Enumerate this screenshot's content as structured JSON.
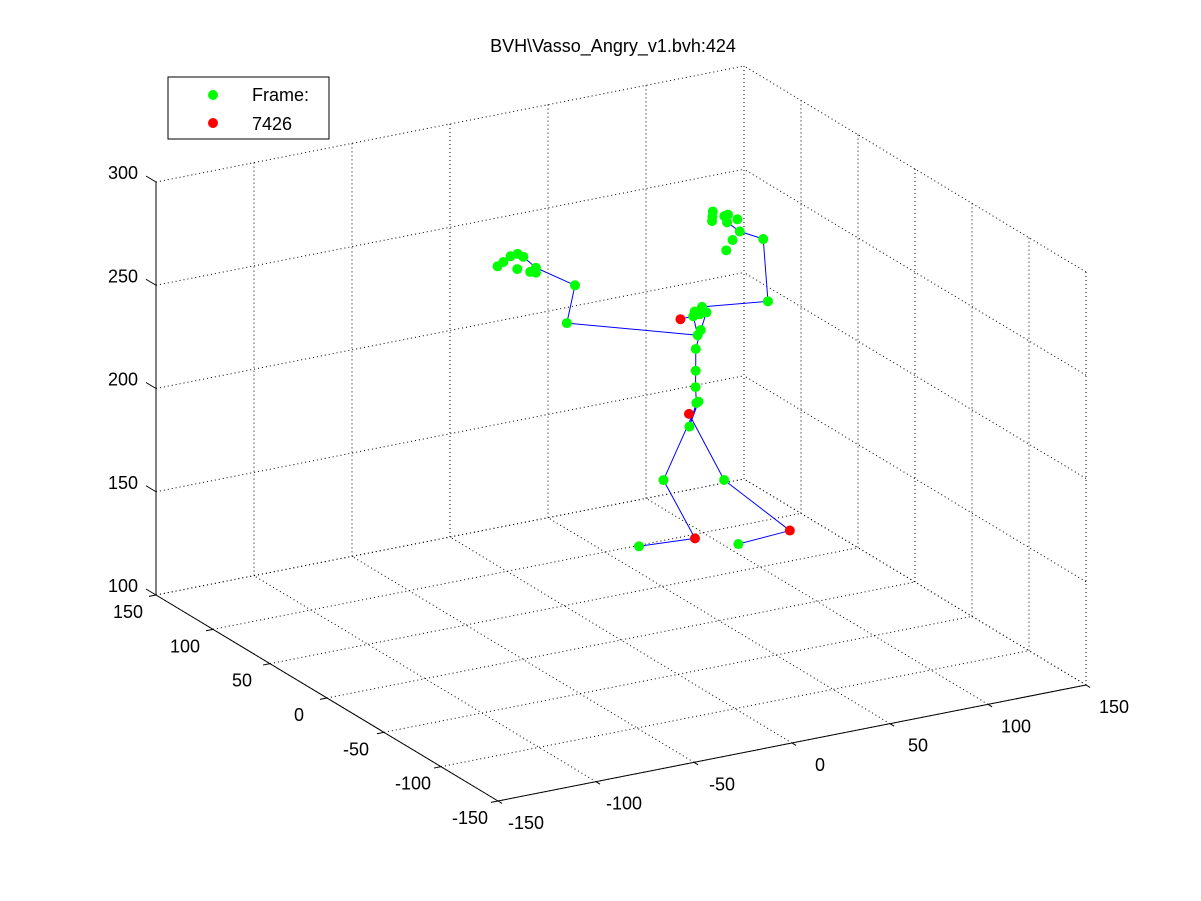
{
  "chart_data": {
    "type": "scatter",
    "title": "BVH\\Vasso_Angry_v1.bvh:424",
    "xlabel": "",
    "ylabel": "",
    "zlabel": "",
    "xlim": [
      -150,
      150
    ],
    "ylim": [
      -150,
      150
    ],
    "zlim": [
      100,
      300
    ],
    "x_ticks": [
      "-150",
      "-100",
      "-50",
      "0",
      "50",
      "100",
      "150"
    ],
    "y_ticks": [
      "-150",
      "-100",
      "-50",
      "0",
      "50",
      "100",
      "150"
    ],
    "z_ticks": [
      "100",
      "150",
      "200",
      "250",
      "300"
    ],
    "grid": true,
    "box": "open",
    "view": "3d",
    "legend": {
      "placement": "top-left",
      "entries": [
        {
          "label": "Frame:",
          "color": "#00ff00",
          "marker": "circle"
        },
        {
          "label": "7426",
          "color": "#ff0000",
          "marker": "circle"
        }
      ]
    },
    "colors": {
      "joints": "#00ff00",
      "end_effectors": "#ff0000",
      "bones": "#0000ff",
      "axes": "#000000",
      "grid": "#000000"
    },
    "series": [
      {
        "name": "Frame:",
        "points": [
          [
            44.3,
            5.1,
            251.3
          ],
          [
            38.4,
            1.4,
            251.4
          ],
          [
            34.2,
            -4.6,
            251.9
          ],
          [
            36.0,
            -7.2,
            253.4
          ],
          [
            41.5,
            -3.6,
            252.1
          ],
          [
            30.0,
            -15.7,
            247.2
          ],
          [
            40.0,
            -1.2,
            243.0
          ],
          [
            39.2,
            1.8,
            233.0
          ],
          [
            38.7,
            1.0,
            222.8
          ],
          [
            38.5,
            0.8,
            215.0
          ],
          [
            37.0,
            -2.5,
            208.7
          ],
          [
            41.3,
            3.1,
            206.7
          ],
          [
            34.9,
            0.0,
            196.8
          ],
          [
            22.3,
            1.1,
            172.9
          ],
          [
            53.2,
            1.0,
            167.2
          ],
          [
            16.5,
            12.6,
            138.1
          ],
          [
            69.7,
            16.9,
            127.8
          ],
          [
            -23.1,
            7.8,
            255.2
          ],
          [
            -32.6,
            -15.7,
            283.1
          ],
          [
            -45.9,
            -4.3,
            287.9
          ],
          [
            -47.5,
            -2.0,
            287.8
          ],
          [
            -45.8,
            -4.1,
            290.2
          ],
          [
            -47.2,
            4.5,
            292.9
          ],
          [
            -55.4,
            7.9,
            290.8
          ],
          [
            -61.7,
            2.2,
            291.8
          ],
          [
            -53.8,
            -1.5,
            290.2
          ],
          [
            -51.3,
            8.6,
            292.6
          ],
          [
            -46.6,
            10.6,
            292.2
          ],
          [
            71.9,
            -5.3,
            252.3
          ],
          [
            88.1,
            26.7,
            268.8
          ],
          [
            75.1,
            36.1,
            276.2
          ],
          [
            77.5,
            39.4,
            278.4
          ],
          [
            70.2,
            40.5,
            278.4
          ],
          [
            67.1,
            35.5,
            278.5
          ],
          [
            79.5,
            32.5,
            272.2
          ],
          [
            76.4,
            40.7,
            277.4
          ],
          [
            81.0,
            37.2,
            276.2
          ],
          [
            72.3,
            43.8,
            279.4
          ],
          [
            72.9,
            27.5,
            270.9
          ],
          [
            67.6,
            23.9,
            268.1
          ]
        ]
      },
      {
        "name": "7426",
        "points": [
          [
            21.6,
            -15.0,
            256.3
          ],
          [
            35.5,
            1.4,
            202.4
          ],
          [
            37.7,
            -0.1,
            142.2
          ],
          [
            84.0,
            -3.7,
            138.5
          ]
        ]
      }
    ],
    "bones": [
      [
        34.9,
        0.0,
        196.8,
        37.0,
        -2.5,
        208.7
      ],
      [
        37.0,
        -2.5,
        208.7,
        38.5,
        0.8,
        215.0
      ],
      [
        38.5,
        0.8,
        215.0,
        38.7,
        1.0,
        222.8
      ],
      [
        38.7,
        1.0,
        222.8,
        39.2,
        1.8,
        233.0
      ],
      [
        39.2,
        1.8,
        233.0,
        40.0,
        -1.2,
        243.0
      ],
      [
        40.0,
        -1.2,
        243.0,
        41.5,
        -3.6,
        252.1
      ],
      [
        41.5,
        -3.6,
        252.1,
        36.0,
        -7.2,
        253.4
      ],
      [
        36.0,
        -7.2,
        253.4,
        34.2,
        -4.6,
        251.9
      ],
      [
        34.2,
        -4.6,
        251.9,
        38.4,
        1.4,
        251.4
      ],
      [
        38.4,
        1.4,
        251.4,
        44.3,
        5.1,
        251.3
      ],
      [
        36.0,
        -7.2,
        253.4,
        21.6,
        -15.0,
        256.3
      ],
      [
        34.2,
        -4.6,
        251.9,
        30.0,
        -15.7,
        247.2
      ],
      [
        30.0,
        -15.7,
        247.2,
        -23.1,
        7.8,
        255.2
      ],
      [
        -23.1,
        7.8,
        255.2,
        -32.6,
        -15.7,
        283.1
      ],
      [
        -32.6,
        -15.7,
        283.1,
        -45.8,
        -4.1,
        290.2
      ],
      [
        -45.8,
        -4.1,
        290.2,
        -47.2,
        4.5,
        292.9
      ],
      [
        44.3,
        5.1,
        251.3,
        71.9,
        -5.3,
        252.3
      ],
      [
        71.9,
        -5.3,
        252.3,
        88.1,
        26.7,
        268.8
      ],
      [
        88.1,
        26.7,
        268.8,
        79.5,
        32.5,
        272.2
      ],
      [
        79.5,
        32.5,
        272.2,
        75.1,
        36.1,
        276.2
      ],
      [
        34.9,
        0.0,
        196.8,
        41.3,
        3.1,
        206.7
      ],
      [
        41.3,
        3.1,
        206.7,
        22.3,
        1.1,
        172.9
      ],
      [
        22.3,
        1.1,
        172.9,
        37.7,
        -0.1,
        142.2
      ],
      [
        37.7,
        -0.1,
        142.2,
        16.5,
        12.6,
        138.1
      ],
      [
        35.5,
        1.4,
        202.4,
        53.2,
        1.0,
        167.2
      ],
      [
        53.2,
        1.0,
        167.2,
        84.0,
        -3.7,
        138.5
      ],
      [
        84.0,
        -3.7,
        138.5,
        69.7,
        16.9,
        127.8
      ]
    ]
  }
}
